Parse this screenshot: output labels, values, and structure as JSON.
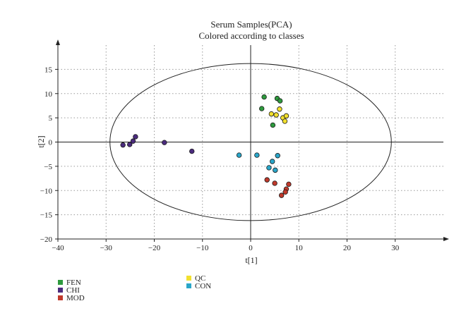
{
  "chart_data": {
    "type": "scatter",
    "title": "Serum Samples(PCA)",
    "subtitle": "Colored according to classes",
    "xlabel": "t[1]",
    "ylabel": "t[2]",
    "xlim": [
      -40,
      40
    ],
    "ylim": [
      -20,
      20
    ],
    "x_ticks": [
      -40,
      -30,
      -20,
      -10,
      0,
      10,
      20,
      30
    ],
    "y_ticks": [
      -20,
      -15,
      -10,
      -5,
      0,
      5,
      10,
      15
    ],
    "grid": true,
    "legend_position": "bottom-left",
    "ellipse": {
      "center": [
        0,
        0
      ],
      "x_radius": 29.2,
      "y_radius": 16.2
    },
    "series": [
      {
        "name": "FEN",
        "color": "#2e9a3e",
        "points": [
          [
            2.8,
            9.3
          ],
          [
            5.5,
            9.0
          ],
          [
            6.1,
            8.5
          ],
          [
            2.3,
            6.9
          ],
          [
            4.6,
            3.5
          ]
        ]
      },
      {
        "name": "CHI",
        "color": "#4b2b7e",
        "points": [
          [
            -26.5,
            -0.6
          ],
          [
            -25.1,
            -0.5
          ],
          [
            -24.4,
            0.2
          ],
          [
            -23.9,
            1.1
          ],
          [
            -17.9,
            -0.1
          ],
          [
            -12.2,
            -1.9
          ]
        ]
      },
      {
        "name": "MOD",
        "color": "#c0392b",
        "points": [
          [
            3.4,
            -7.8
          ],
          [
            5.0,
            -8.5
          ],
          [
            7.9,
            -8.7
          ],
          [
            7.4,
            -9.7
          ],
          [
            7.2,
            -10.3
          ],
          [
            6.4,
            -11.0
          ]
        ]
      },
      {
        "name": "QC",
        "color": "#f2e02f",
        "points": [
          [
            4.3,
            5.8
          ],
          [
            6.0,
            6.8
          ],
          [
            5.3,
            5.6
          ],
          [
            6.7,
            5.0
          ],
          [
            7.4,
            5.4
          ],
          [
            7.1,
            4.3
          ]
        ]
      },
      {
        "name": "CON",
        "color": "#2aa6c9",
        "points": [
          [
            -2.4,
            -2.7
          ],
          [
            1.3,
            -2.7
          ],
          [
            5.6,
            -2.8
          ],
          [
            4.5,
            -4.0
          ],
          [
            3.8,
            -5.3
          ],
          [
            5.1,
            -5.8
          ]
        ]
      }
    ]
  }
}
